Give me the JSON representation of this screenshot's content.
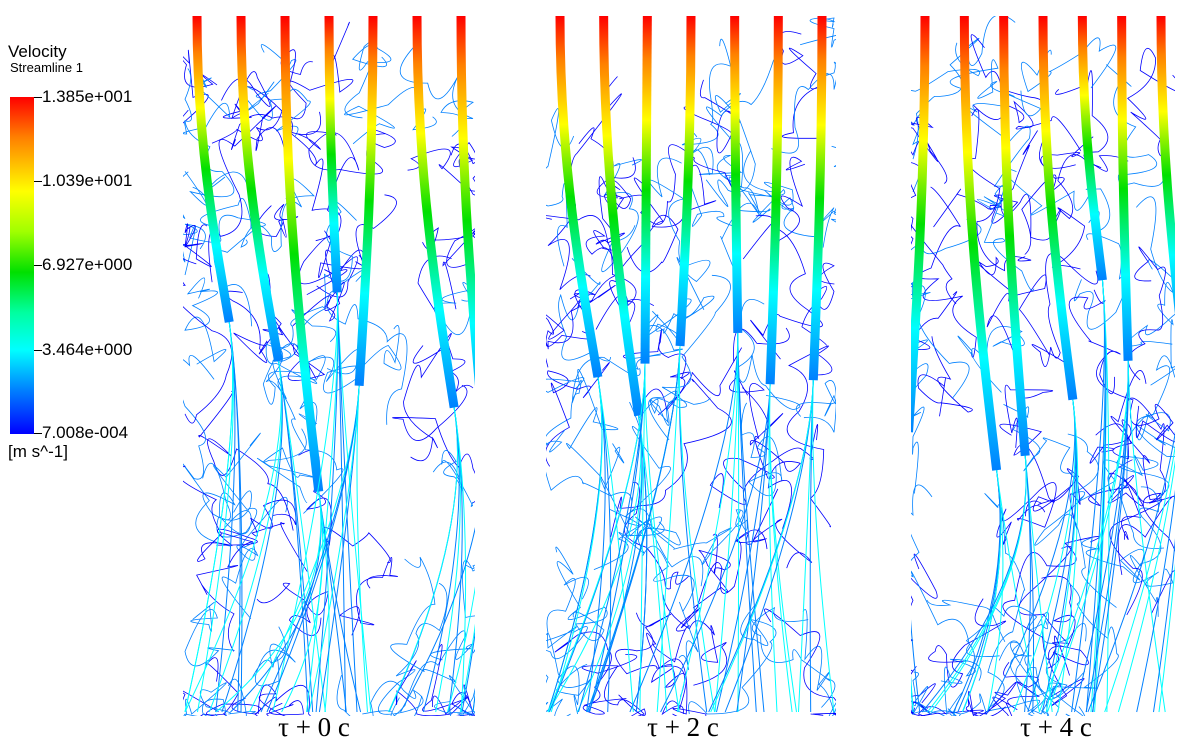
{
  "legend": {
    "title": "Velocity",
    "subtitle": "Streamline 1",
    "ticks": [
      "1.385e+001",
      "1.039e+001",
      "6.927e+000",
      "3.464e+000",
      "7.008e-004"
    ],
    "units": "[m s^-1]",
    "colors": [
      "#ff0000",
      "#ff8000",
      "#ffff00",
      "#00e000",
      "#00ffff",
      "#0080ff",
      "#0000ff"
    ]
  },
  "panels": [
    {
      "caption": "τ + 0 c"
    },
    {
      "caption": "τ + 2 c"
    },
    {
      "caption": "τ + 4 c"
    }
  ]
}
